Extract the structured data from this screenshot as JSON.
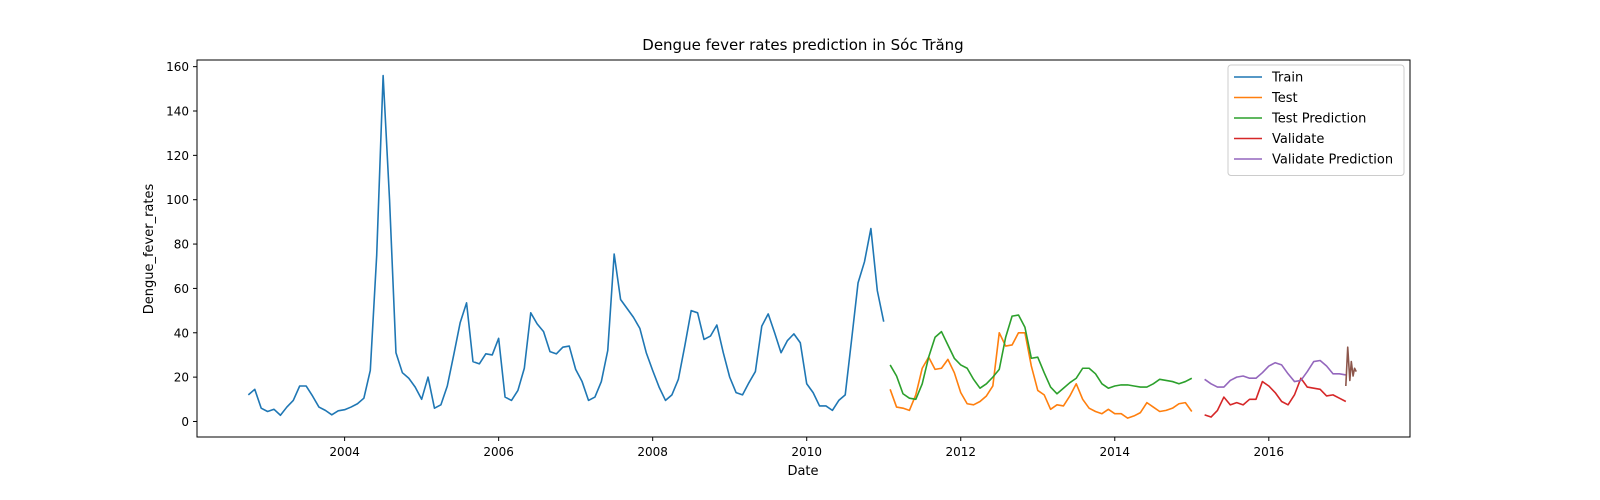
{
  "chart_data": {
    "type": "line",
    "title": "Dengue fever rates prediction in Sóc Trăng",
    "xlabel": "Date",
    "ylabel": "Dengue_fever_rates",
    "xlim": [
      "2002-02-01",
      "2017-11-01"
    ],
    "ylim": [
      -7,
      163
    ],
    "yticks": [
      0,
      20,
      40,
      60,
      80,
      100,
      120,
      140,
      160
    ],
    "xticks": [
      "2004-01-01",
      "2006-01-01",
      "2008-01-01",
      "2010-01-01",
      "2012-01-01",
      "2014-01-01",
      "2016-01-01"
    ],
    "xtick_labels": [
      "2004",
      "2006",
      "2008",
      "2010",
      "2012",
      "2014",
      "2016"
    ],
    "grid": false,
    "legend_position": "top-right",
    "series": [
      {
        "name": "Train",
        "color": "#1f77b4",
        "x": [
          "2002-10",
          "2002-11",
          "2002-12",
          "2003-01",
          "2003-02",
          "2003-03",
          "2003-04",
          "2003-05",
          "2003-06",
          "2003-07",
          "2003-08",
          "2003-09",
          "2003-10",
          "2003-11",
          "2003-12",
          "2004-01",
          "2004-02",
          "2004-03",
          "2004-04",
          "2004-05",
          "2004-06",
          "2004-07",
          "2004-08",
          "2004-09",
          "2004-10",
          "2004-11",
          "2004-12",
          "2005-01",
          "2005-02",
          "2005-03",
          "2005-04",
          "2005-05",
          "2005-06",
          "2005-07",
          "2005-08",
          "2005-09",
          "2005-10",
          "2005-11",
          "2005-12",
          "2006-01",
          "2006-02",
          "2006-03",
          "2006-04",
          "2006-05",
          "2006-06",
          "2006-07",
          "2006-08",
          "2006-09",
          "2006-10",
          "2006-11",
          "2006-12",
          "2007-01",
          "2007-02",
          "2007-03",
          "2007-04",
          "2007-05",
          "2007-06",
          "2007-07",
          "2007-08",
          "2007-09",
          "2007-10",
          "2007-11",
          "2007-12",
          "2008-01",
          "2008-02",
          "2008-03",
          "2008-04",
          "2008-05",
          "2008-06",
          "2008-07",
          "2008-08",
          "2008-09",
          "2008-10",
          "2008-11",
          "2008-12",
          "2009-01",
          "2009-02",
          "2009-03",
          "2009-04",
          "2009-05",
          "2009-06",
          "2009-07",
          "2009-08",
          "2009-09",
          "2009-10",
          "2009-11",
          "2009-12",
          "2010-01",
          "2010-02",
          "2010-03",
          "2010-04",
          "2010-05",
          "2010-06",
          "2010-07",
          "2010-08",
          "2010-09",
          "2010-10",
          "2010-11",
          "2010-12",
          "2011-01"
        ],
        "y": [
          12,
          14.5,
          6,
          4.5,
          5.5,
          2.8,
          6.5,
          9.5,
          16,
          16,
          11.5,
          6.5,
          5,
          3,
          4.8,
          5.3,
          6.5,
          8,
          10.5,
          23,
          75,
          156,
          100,
          31,
          22,
          19.5,
          15.5,
          10,
          20,
          6,
          7.5,
          16,
          30,
          44.5,
          53.5,
          27,
          26,
          30.5,
          30,
          37.5,
          11,
          9.5,
          14,
          24,
          49,
          44,
          40.5,
          31.5,
          30.5,
          33.5,
          34,
          23.5,
          18,
          9.5,
          11,
          18,
          32,
          75.5,
          55,
          51,
          47,
          42,
          31,
          23,
          15.5,
          9.5,
          12,
          19,
          34,
          50,
          49,
          37,
          38.5,
          43.5,
          31,
          20,
          13,
          12,
          17.5,
          22.5,
          43,
          48.5,
          40,
          31,
          36.5,
          39.5,
          35.5,
          17,
          13,
          7,
          7,
          5,
          9.5,
          12,
          37,
          62.5,
          72,
          87,
          59,
          45
        ]
      },
      {
        "name": "Test",
        "color": "#ff7f0e",
        "x": [
          "2011-02",
          "2011-03",
          "2011-04",
          "2011-05",
          "2011-06",
          "2011-07",
          "2011-08",
          "2011-09",
          "2011-10",
          "2011-11",
          "2011-12",
          "2012-01",
          "2012-02",
          "2012-03",
          "2012-04",
          "2012-05",
          "2012-06",
          "2012-07",
          "2012-08",
          "2012-09",
          "2012-10",
          "2012-11",
          "2012-12",
          "2013-01",
          "2013-02",
          "2013-03",
          "2013-04",
          "2013-05",
          "2013-06",
          "2013-07",
          "2013-08",
          "2013-09",
          "2013-10",
          "2013-11",
          "2013-12",
          "2014-01",
          "2014-02",
          "2014-03",
          "2014-04",
          "2014-05",
          "2014-06",
          "2014-07",
          "2014-08",
          "2014-09",
          "2014-10",
          "2014-11",
          "2014-12",
          "2015-01"
        ],
        "y": [
          14.5,
          6.5,
          6,
          5,
          12,
          24,
          29,
          23.5,
          24,
          28,
          22,
          13,
          8,
          7.5,
          9,
          11.5,
          16,
          40,
          34,
          34.5,
          40,
          40,
          25,
          14,
          12,
          5.5,
          7.5,
          7,
          11.5,
          17,
          10,
          6,
          4.5,
          3.5,
          5.5,
          3.5,
          3.5,
          1.5,
          2.5,
          4,
          8.5,
          6.5,
          4.5,
          5,
          6,
          8,
          8.5,
          4.5
        ]
      },
      {
        "name": "Test Prediction",
        "color": "#2ca02c",
        "x": [
          "2011-02",
          "2011-03",
          "2011-04",
          "2011-05",
          "2011-06",
          "2011-07",
          "2011-08",
          "2011-09",
          "2011-10",
          "2011-11",
          "2011-12",
          "2012-01",
          "2012-02",
          "2012-03",
          "2012-04",
          "2012-05",
          "2012-06",
          "2012-07",
          "2012-08",
          "2012-09",
          "2012-10",
          "2012-11",
          "2012-12",
          "2013-01",
          "2013-02",
          "2013-03",
          "2013-04",
          "2013-05",
          "2013-06",
          "2013-07",
          "2013-08",
          "2013-09",
          "2013-10",
          "2013-11",
          "2013-12",
          "2014-01",
          "2014-02",
          "2014-03",
          "2014-04",
          "2014-05",
          "2014-06",
          "2014-07",
          "2014-08",
          "2014-09",
          "2014-10",
          "2014-11",
          "2014-12",
          "2015-01"
        ],
        "y": [
          25.5,
          20.5,
          12.5,
          10.5,
          10,
          17,
          29,
          38,
          40.5,
          34.5,
          28.5,
          25.5,
          24,
          19,
          15,
          17,
          20,
          23.5,
          38,
          47.5,
          48,
          42.5,
          28.5,
          29,
          22,
          15.5,
          12.5,
          15,
          17.5,
          19.5,
          24,
          24,
          21.5,
          17,
          15,
          16,
          16.5,
          16.5,
          16,
          15.5,
          15.5,
          17,
          19,
          18.5,
          18,
          17,
          18,
          19.5
        ]
      },
      {
        "name": "Validate",
        "color": "#d62728",
        "x": [
          "2015-03",
          "2015-04",
          "2015-05",
          "2015-06",
          "2015-07",
          "2015-08",
          "2015-09",
          "2015-10",
          "2015-11",
          "2015-12",
          "2016-01",
          "2016-02",
          "2016-03",
          "2016-04",
          "2016-05",
          "2016-06",
          "2016-07",
          "2016-08",
          "2016-09",
          "2016-10",
          "2016-11",
          "2016-12",
          "2017-01"
        ],
        "y": [
          3,
          2,
          5,
          11,
          7.5,
          8.5,
          7.5,
          10,
          10,
          18,
          16,
          13,
          9,
          7.5,
          12,
          19.5,
          15.5,
          15,
          14.5,
          11.5,
          12,
          10.5,
          9
        ]
      },
      {
        "name": "Validate Prediction",
        "color": "#9467bd",
        "x": [
          "2015-03",
          "2015-04",
          "2015-05",
          "2015-06",
          "2015-07",
          "2015-08",
          "2015-09",
          "2015-10",
          "2015-11",
          "2015-12",
          "2016-01",
          "2016-02",
          "2016-03",
          "2016-04",
          "2016-05",
          "2016-06",
          "2016-07",
          "2016-08",
          "2016-09",
          "2016-10",
          "2016-11",
          "2016-12",
          "2017-01"
        ],
        "y": [
          19,
          17,
          15.5,
          15.5,
          18.5,
          20,
          20.5,
          19.5,
          19.5,
          22,
          25,
          26.5,
          25.5,
          21.5,
          18,
          18.5,
          22.5,
          27,
          27.5,
          25,
          21.5,
          21.5,
          21
        ]
      }
    ],
    "extra_marks": [
      {
        "color": "#8c564b",
        "x": [
          "2017-01-01",
          "2017-01-10",
          "2017-01-20",
          "2017-01-27",
          "2017-02-05",
          "2017-02-12",
          "2017-02-20"
        ],
        "y": [
          16,
          33.5,
          18.5,
          27,
          20.5,
          24,
          22.5
        ]
      }
    ]
  }
}
